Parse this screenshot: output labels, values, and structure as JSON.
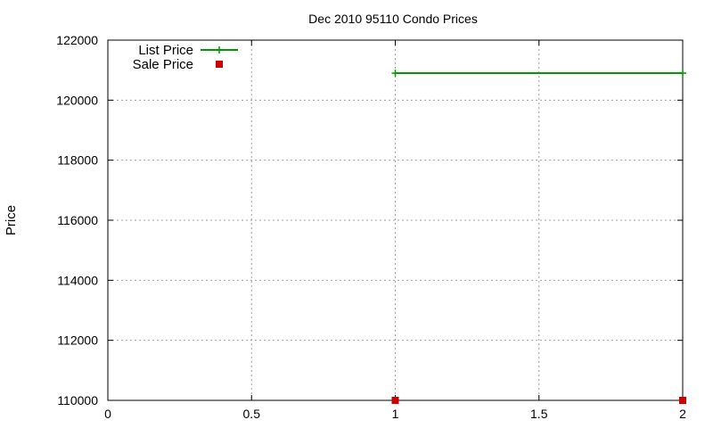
{
  "chart_data": {
    "type": "line",
    "title": "Dec 2010 95110 Condo Prices",
    "xlabel": "",
    "ylabel": "Price",
    "xlim": [
      0,
      2
    ],
    "ylim": [
      110000,
      122000
    ],
    "x_ticks": [
      0,
      0.5,
      1,
      1.5,
      2
    ],
    "x_tick_labels": [
      "0",
      "0.5",
      "1",
      "1.5",
      "2"
    ],
    "y_ticks": [
      110000,
      112000,
      114000,
      116000,
      118000,
      120000,
      122000
    ],
    "y_tick_labels": [
      "110000",
      "112000",
      "114000",
      "116000",
      "118000",
      "120000",
      "122000"
    ],
    "grid": true,
    "legend_position": "top-left",
    "series": [
      {
        "name": "List Price",
        "style": "line-with-plus-markers",
        "color": "#009900",
        "points": [
          [
            1,
            120900
          ],
          [
            2,
            120900
          ]
        ]
      },
      {
        "name": "Sale Price",
        "style": "square-markers",
        "color": "#cc0000",
        "points": [
          [
            1,
            110000
          ],
          [
            2,
            110000
          ]
        ]
      }
    ]
  }
}
